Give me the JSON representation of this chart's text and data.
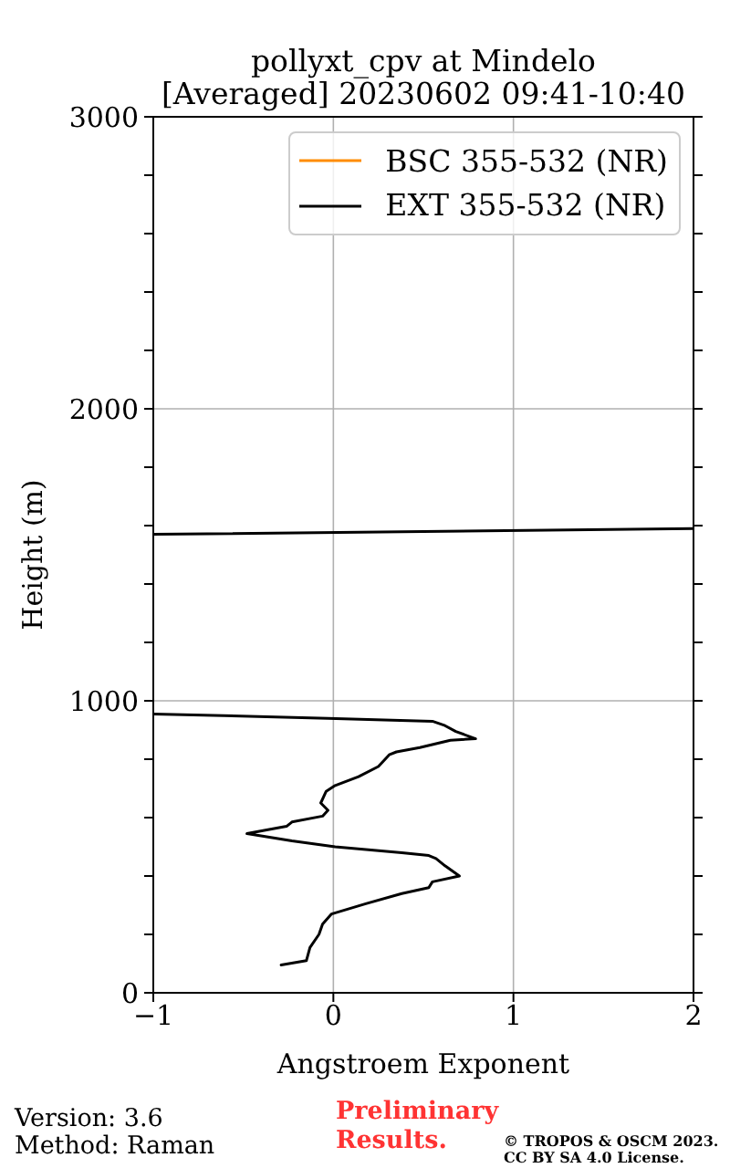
{
  "chart_data": {
    "type": "line",
    "title": "pollyxt_cpv at Mindelo",
    "subtitle": "[Averaged] 20230602 09:41-10:40",
    "xlabel": "Angstroem Exponent",
    "ylabel": "Height (m)",
    "xlim": [
      -1,
      2
    ],
    "xticks": [
      {
        "value": -1,
        "label": "−1"
      },
      0,
      1,
      2
    ],
    "ylim": [
      0,
      3000
    ],
    "yticks": [
      0,
      {
        "value": 200,
        "label": null
      },
      {
        "value": 400,
        "label": null
      },
      {
        "value": 600,
        "label": null
      },
      {
        "value": 800,
        "label": null
      },
      1000,
      {
        "value": 1200,
        "label": null
      },
      {
        "value": 1400,
        "label": null
      },
      {
        "value": 1600,
        "label": null
      },
      {
        "value": 1800,
        "label": null
      },
      2000,
      {
        "value": 2200,
        "label": null
      },
      {
        "value": 2400,
        "label": null
      },
      {
        "value": 2600,
        "label": null
      },
      {
        "value": 2800,
        "label": null
      },
      3000
    ],
    "grid": true,
    "legend": "top right",
    "series": [
      {
        "name": "BSC 355-532 (NR)",
        "color": "#ff8c00"
      },
      {
        "name": "EXT 355-532 (NR)",
        "color": "#000000",
        "x": [
          -0.29,
          -0.15,
          -0.13,
          -0.08,
          -0.06,
          -0.01,
          0.18,
          0.38,
          0.53,
          0.55,
          0.7,
          0.62,
          0.57,
          0.53,
          0.38,
          0.01,
          -0.23,
          -0.48,
          -0.26,
          -0.23,
          -0.06,
          -0.03,
          -0.07,
          -0.04,
          0.01,
          0.14,
          0.25,
          0.31,
          0.35,
          0.48,
          0.65,
          0.79,
          0.68,
          0.62,
          0.55,
          -0.03,
          -1,
          null,
          -1,
          2
        ],
        "values": [
          95,
          110,
          155,
          200,
          235,
          270,
          305,
          340,
          360,
          380,
          400,
          435,
          460,
          470,
          480,
          500,
          520,
          545,
          570,
          585,
          605,
          625,
          650,
          690,
          710,
          740,
          775,
          815,
          825,
          840,
          865,
          870,
          895,
          915,
          930,
          940,
          955,
          null,
          1570,
          1590
        ]
      }
    ],
    "annotations": [
      "Version: 3.6",
      "Method: Raman",
      "Preliminary Results.",
      "© TROPOS & OSCM 2023.",
      "CC BY SA 4.0 License."
    ]
  }
}
